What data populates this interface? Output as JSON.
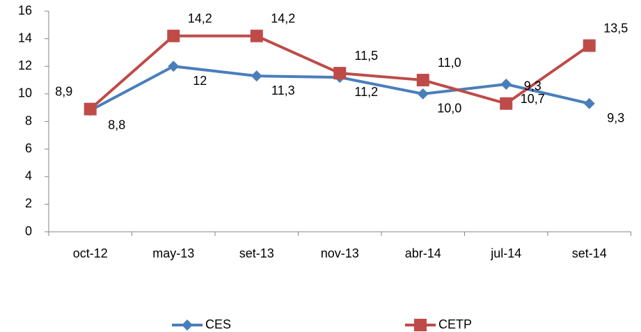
{
  "chart_data": {
    "type": "line",
    "categories": [
      "oct-12",
      "may-13",
      "set-13",
      "nov-13",
      "abr-14",
      "jul-14",
      "set-14"
    ],
    "series": [
      {
        "name": "CES",
        "color": "#4a7ebb",
        "marker": "diamond",
        "values": [
          8.8,
          12,
          11.3,
          11.2,
          10.0,
          10.7,
          9.3
        ],
        "value_labels": [
          "8,8",
          "12",
          "11,3",
          "11,2",
          "10,0",
          "10,7",
          "9,3"
        ]
      },
      {
        "name": "CETP",
        "color": "#be4b48",
        "marker": "square",
        "values": [
          8.9,
          14.2,
          14.2,
          11.5,
          11.0,
          9.3,
          13.5
        ],
        "value_labels": [
          "8,9",
          "14,2",
          "14,2",
          "11,5",
          "11,0",
          "9,3",
          "13,5"
        ]
      }
    ],
    "ylim": [
      0,
      16
    ],
    "yticks": [
      0,
      2,
      4,
      6,
      8,
      10,
      12,
      14,
      16
    ],
    "grid": false,
    "legend": "bottom"
  }
}
